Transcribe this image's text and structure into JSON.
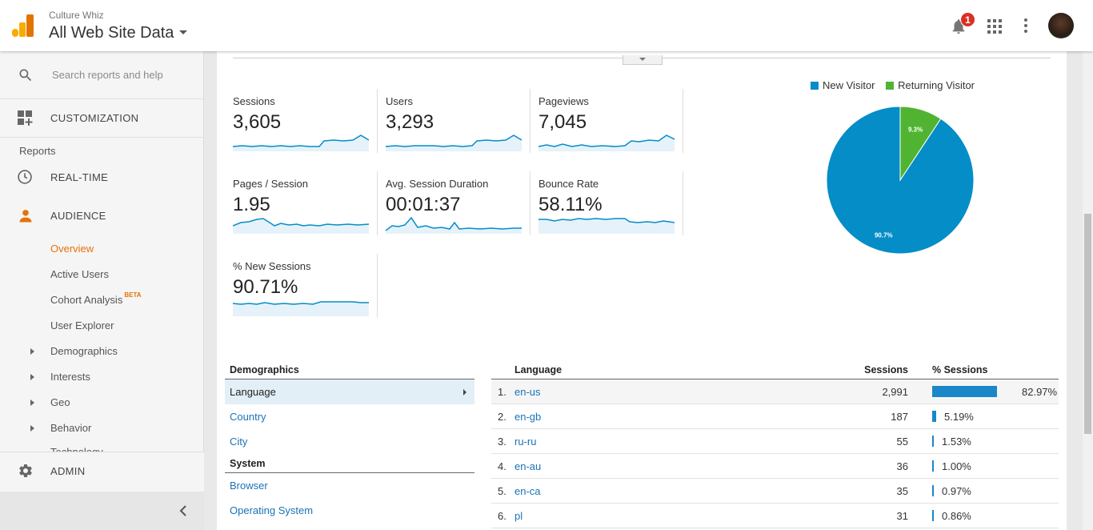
{
  "header": {
    "account_name": "Culture Whiz",
    "property_name": "All Web Site Data",
    "notification_count": "1",
    "icons": [
      "analytics-logo-icon",
      "chevron-down-icon",
      "bell-icon",
      "apps-grid-icon",
      "more-vert-icon",
      "avatar"
    ]
  },
  "sidebar": {
    "search_placeholder": "Search reports and help",
    "customization_label": "CUSTOMIZATION",
    "reports_label": "Reports",
    "realtime_label": "REAL-TIME",
    "audience_label": "AUDIENCE",
    "audience_items": {
      "overview": "Overview",
      "active_users": "Active Users",
      "cohort_analysis": "Cohort Analysis",
      "cohort_badge": "BETA",
      "user_explorer": "User Explorer",
      "demographics": "Demographics",
      "interests": "Interests",
      "geo": "Geo",
      "behavior": "Behavior",
      "technology": "Technology"
    },
    "admin_label": "ADMIN",
    "accent_color": "#e8710a"
  },
  "metrics": [
    {
      "label": "Sessions",
      "value": "3,605"
    },
    {
      "label": "Users",
      "value": "3,293"
    },
    {
      "label": "Pageviews",
      "value": "7,045"
    },
    {
      "label": "Pages / Session",
      "value": "1.95"
    },
    {
      "label": "Avg. Session Duration",
      "value": "00:01:37"
    },
    {
      "label": "Bounce Rate",
      "value": "58.11%"
    },
    {
      "label": "% New Sessions",
      "value": "90.71%"
    }
  ],
  "chart_data": {
    "type": "pie",
    "legend_position": "top",
    "series": [
      {
        "name": "New Visitor",
        "value": 90.7,
        "label": "90.7%",
        "color": "#058dc7"
      },
      {
        "name": "Returning Visitor",
        "value": 9.3,
        "label": "9.3%",
        "color": "#50b432"
      }
    ]
  },
  "dimensions": {
    "demographics_heading": "Demographics",
    "demographics_items": [
      "Language",
      "Country",
      "City"
    ],
    "system_heading": "System",
    "system_items": [
      "Browser",
      "Operating System"
    ]
  },
  "language_table": {
    "col_language": "Language",
    "col_sessions": "Sessions",
    "col_pct": "% Sessions",
    "rows": [
      {
        "index": "1.",
        "language": "en-us",
        "sessions": "2,991",
        "pct": "82.97%",
        "share": 82.97
      },
      {
        "index": "2.",
        "language": "en-gb",
        "sessions": "187",
        "pct": "5.19%",
        "share": 5.19
      },
      {
        "index": "3.",
        "language": "ru-ru",
        "sessions": "55",
        "pct": "1.53%",
        "share": 1.53
      },
      {
        "index": "4.",
        "language": "en-au",
        "sessions": "36",
        "pct": "1.00%",
        "share": 1.0
      },
      {
        "index": "5.",
        "language": "en-ca",
        "sessions": "35",
        "pct": "0.97%",
        "share": 0.97
      },
      {
        "index": "6.",
        "language": "pl",
        "sessions": "31",
        "pct": "0.86%",
        "share": 0.86
      }
    ]
  }
}
